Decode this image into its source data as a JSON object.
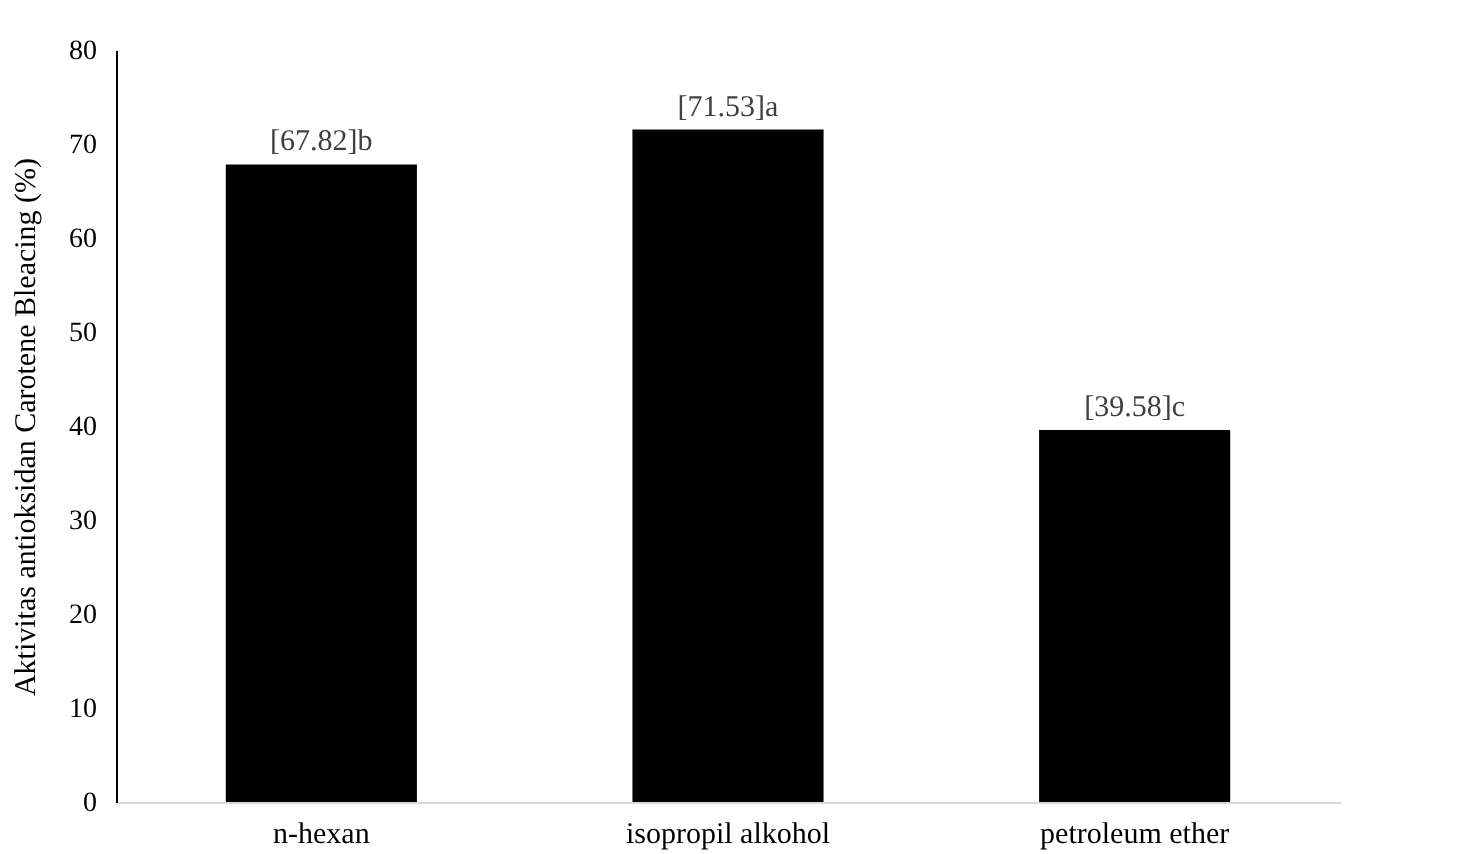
{
  "chart_data": {
    "type": "bar",
    "ylabel": "Aktivitas antioksidan Carotene Bleacing (%)",
    "categories": [
      "n-hexan",
      "isopropil alkohol",
      "petroleum ether"
    ],
    "values": [
      67.82,
      71.53,
      39.58
    ],
    "value_labels": [
      "[67.82]b",
      "[71.53]a",
      "[39.58]c"
    ],
    "color": "#000000",
    "ylim": [
      0,
      80
    ],
    "yticks": [
      0,
      10,
      20,
      30,
      40,
      50,
      60,
      70,
      80
    ],
    "grid": false
  }
}
